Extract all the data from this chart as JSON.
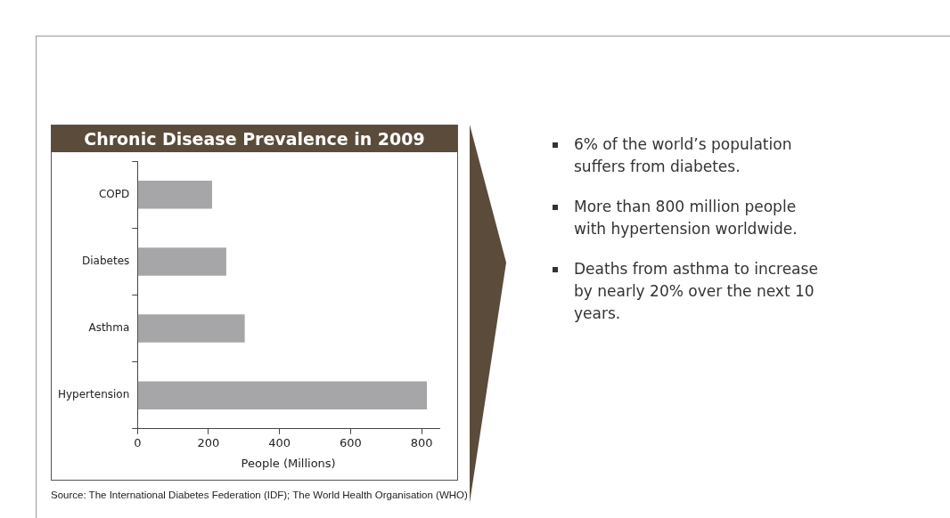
{
  "chart_data": {
    "type": "bar",
    "orientation": "horizontal",
    "title": "Chronic Disease Prevalence in 2009",
    "categories": [
      "COPD",
      "Diabetes",
      "Asthma",
      "Hypertension"
    ],
    "values": [
      210,
      250,
      302,
      815
    ],
    "color": "#a6a6a8",
    "xlabel": "People (Millions)",
    "xlim": [
      0,
      850
    ],
    "xticks": [
      0,
      200,
      400,
      600,
      800
    ],
    "grid": false,
    "legend": false,
    "annotations": [
      "6% of the world’s population suffers from diabetes.",
      "More than 800 million people with hypertension worldwide.",
      "Deaths from asthma to increase by nearly 20% over the next 10 years.",
      "Source: The International Diabetes Federation (IDF); The World Health Organisation (WHO)"
    ]
  }
}
